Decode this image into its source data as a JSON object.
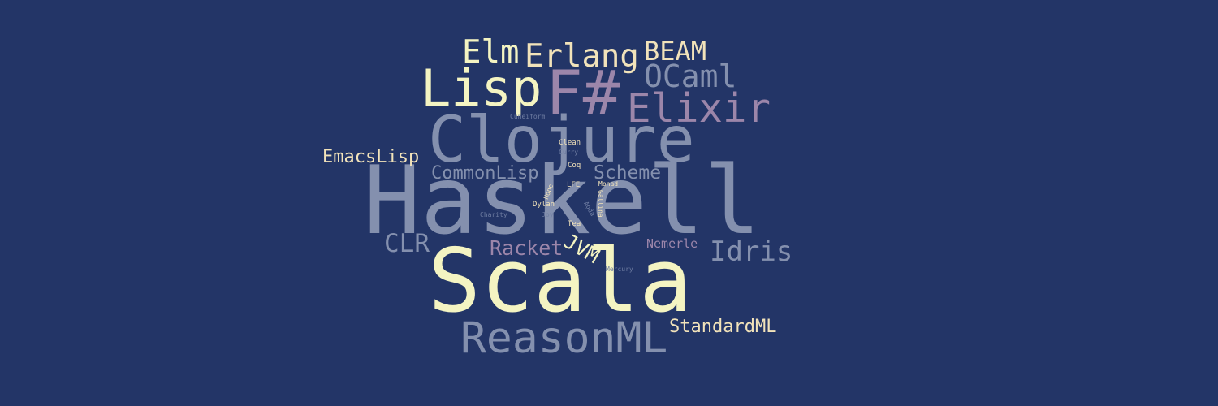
{
  "colors": {
    "background": "#233567",
    "cream": "#F4F4C2",
    "slate": "#8490AE",
    "mauve": "#9C86AA",
    "tan": "#F2E3BA",
    "dim": "#6F7DA2"
  },
  "words": {
    "haskell": "Haskell",
    "scala": "Scala",
    "clojure": "Clojure",
    "fsharp": "F#",
    "lisp": "Lisp",
    "reasonml": "ReasonML",
    "elixir": "Elixir",
    "erlang": "Erlang",
    "elm": "Elm",
    "beam": "BEAM",
    "ocaml": "OCaml",
    "idris": "Idris",
    "racket": "Racket",
    "clr": "CLR",
    "commonlisp": "CommonLisp",
    "scheme": "Scheme",
    "emacslisp": "EmacsLisp",
    "standardml": "StandardML",
    "jvm": "JVM",
    "nemerle": "Nemerle",
    "cuneiform": "Cuneiform",
    "clean": "Clean",
    "curry": "Curry",
    "coq": "Coq",
    "lfe": "LFE",
    "monad": "Monad",
    "hope": "Hope",
    "gallina": "Gallina",
    "dylan": "Dylan",
    "agda": "Agda",
    "charity": "Charity",
    "joy": "Joy",
    "tea": "Tea",
    "mercury": "Mercury"
  }
}
